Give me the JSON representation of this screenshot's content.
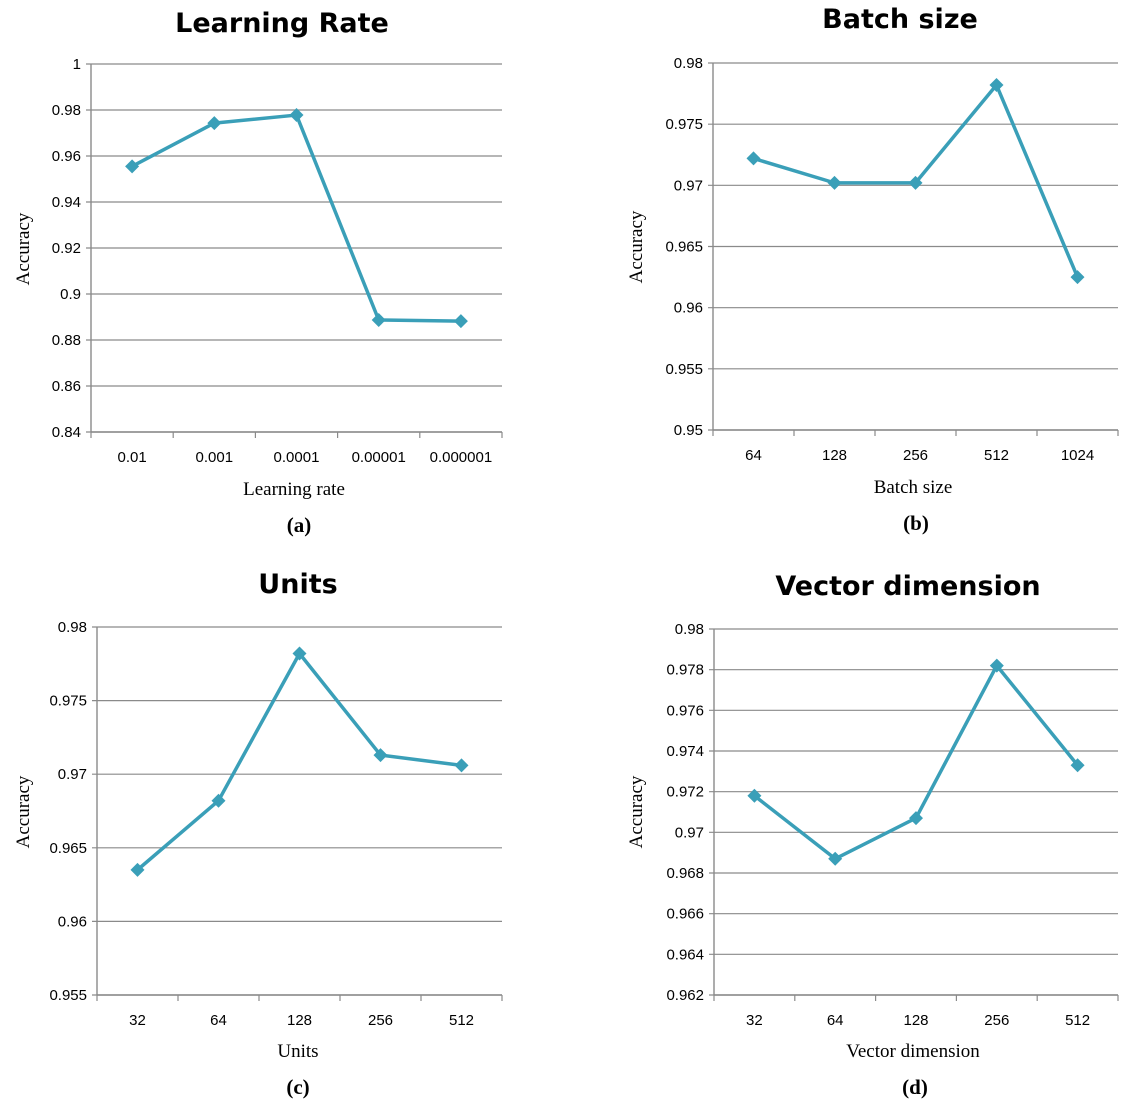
{
  "chart_data": [
    {
      "type": "line",
      "title": "Learning Rate",
      "xlabel": "Learning  rate",
      "ylabel": "Accuracy",
      "caption": "(a)",
      "categories": [
        "0.01",
        "0.001",
        "0.0001",
        "0.00001",
        "0.000001"
      ],
      "values": [
        0.9555,
        0.9743,
        0.9778,
        0.8887,
        0.8882
      ],
      "ylim": [
        0.84,
        1
      ],
      "yticks": [
        "0.84",
        "0.86",
        "0.88",
        "0.9",
        "0.92",
        "0.94",
        "0.96",
        "0.98",
        "1"
      ],
      "grid": true,
      "color": "#3a9fb8"
    },
    {
      "type": "line",
      "title": "Batch size",
      "xlabel": "Batch size",
      "ylabel": "Accuracy",
      "caption": "(b)",
      "categories": [
        "64",
        "128",
        "256",
        "512",
        "1024"
      ],
      "values": [
        0.9722,
        0.9702,
        0.9702,
        0.9782,
        0.9625
      ],
      "ylim": [
        0.95,
        0.98
      ],
      "yticks": [
        "0.95",
        "0.955",
        "0.96",
        "0.965",
        "0.97",
        "0.975",
        "0.98"
      ],
      "grid": true,
      "color": "#3a9fb8"
    },
    {
      "type": "line",
      "title": "Units",
      "xlabel": "Units",
      "ylabel": "Accuracy",
      "caption": "(c)",
      "categories": [
        "32",
        "64",
        "128",
        "256",
        "512"
      ],
      "values": [
        0.9635,
        0.9682,
        0.9782,
        0.9713,
        0.9706
      ],
      "ylim": [
        0.955,
        0.98
      ],
      "yticks": [
        "0.955",
        "0.96",
        "0.965",
        "0.97",
        "0.975",
        "0.98"
      ],
      "grid": true,
      "color": "#3a9fb8"
    },
    {
      "type": "line",
      "title": "Vector dimension",
      "xlabel": "Vector dimension",
      "ylabel": "Accuracy",
      "caption": "(d)",
      "categories": [
        "32",
        "64",
        "128",
        "256",
        "512"
      ],
      "values": [
        0.9718,
        0.9687,
        0.9707,
        0.9782,
        0.9733
      ],
      "ylim": [
        0.962,
        0.98
      ],
      "yticks": [
        "0.962",
        "0.964",
        "0.966",
        "0.968",
        "0.97",
        "0.972",
        "0.974",
        "0.976",
        "0.978",
        "0.98"
      ],
      "grid": true,
      "color": "#3a9fb8"
    }
  ]
}
